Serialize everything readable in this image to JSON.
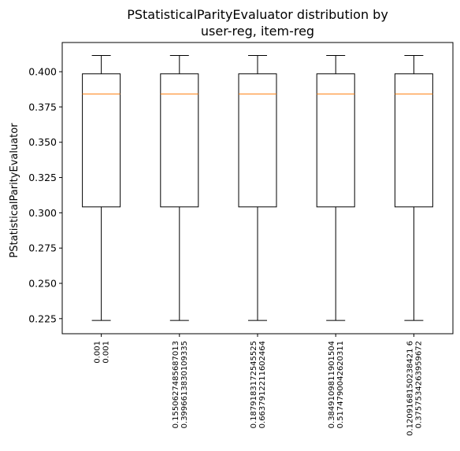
{
  "chart_data": {
    "type": "box",
    "title_lines": [
      "PStatisticalParityEvaluator distribution by",
      "user-reg, item-reg"
    ],
    "ylabel": "PStatisticalParityEvaluator",
    "ylim": [
      0.2143,
      0.4207
    ],
    "yticks": [
      "0.225",
      "0.250",
      "0.275",
      "0.300",
      "0.325",
      "0.350",
      "0.375",
      "0.400"
    ],
    "ytick_values": [
      0.225,
      0.25,
      0.275,
      0.3,
      0.325,
      0.35,
      0.375,
      0.4
    ],
    "categories": [
      [
        "0.001",
        "0.001"
      ],
      [
        "0.1550627485687013",
        "0.3996613830109335"
      ],
      [
        "0.1879183172545525",
        "0.6637912211602464"
      ],
      [
        "0.3849109811901504",
        "0.5174790042620311"
      ],
      [
        "0.1209168150238421 6",
        "0.3757534263959672"
      ]
    ],
    "boxes": [
      {
        "whisker_low": 0.2237,
        "q1": 0.3042,
        "median": 0.3842,
        "q3": 0.3985,
        "whisker_high": 0.4115
      },
      {
        "whisker_low": 0.2237,
        "q1": 0.3042,
        "median": 0.3842,
        "q3": 0.3985,
        "whisker_high": 0.4115
      },
      {
        "whisker_low": 0.2237,
        "q1": 0.3042,
        "median": 0.3842,
        "q3": 0.3985,
        "whisker_high": 0.4115
      },
      {
        "whisker_low": 0.2237,
        "q1": 0.3042,
        "median": 0.3842,
        "q3": 0.3985,
        "whisker_high": 0.4115
      },
      {
        "whisker_low": 0.2237,
        "q1": 0.3042,
        "median": 0.3842,
        "q3": 0.3985,
        "whisker_high": 0.4115
      }
    ],
    "colors": {
      "box": "#000000",
      "median": "#ff7f0e"
    },
    "grid": false,
    "legend": false
  }
}
